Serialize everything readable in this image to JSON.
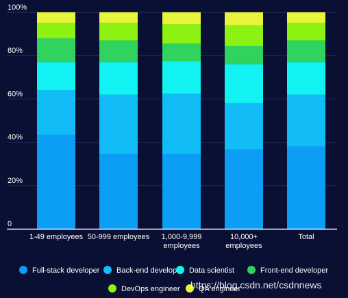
{
  "chart_data": {
    "type": "bar",
    "stacked": true,
    "normalized_percent": true,
    "categories": [
      [
        "1-49 employees"
      ],
      [
        "50-999 employees"
      ],
      [
        "1,000-9,999",
        "employees"
      ],
      [
        "10,000+",
        "employees"
      ],
      [
        "Total"
      ]
    ],
    "series": [
      {
        "name": "Full-stack developer",
        "color": "#0c9df4",
        "values": [
          43.5,
          34.5,
          34.5,
          36.5,
          38
        ]
      },
      {
        "name": "Back-end developer",
        "color": "#12bdf7",
        "values": [
          20.5,
          27.5,
          28,
          21.5,
          24
        ]
      },
      {
        "name": "Data scientist",
        "color": "#12f2f2",
        "values": [
          13,
          15,
          15,
          18,
          15
        ]
      },
      {
        "name": "Front-end developer",
        "color": "#2fd35d",
        "values": [
          11,
          10,
          8,
          8.5,
          10
        ]
      },
      {
        "name": "DevOps engineer",
        "color": "#8cf211",
        "values": [
          7,
          8,
          9,
          9.5,
          8
        ]
      },
      {
        "name": "QA engineer",
        "color": "#e7f53b",
        "values": [
          5,
          5,
          5.5,
          6,
          5
        ]
      }
    ],
    "y_ticks": [
      "0",
      "20%",
      "40%",
      "60%",
      "80%",
      "100%"
    ],
    "ylim": [
      0,
      100
    ],
    "grid": true,
    "legend_position": "bottom"
  },
  "watermark": "https://blog.csdn.net/csdnnews"
}
